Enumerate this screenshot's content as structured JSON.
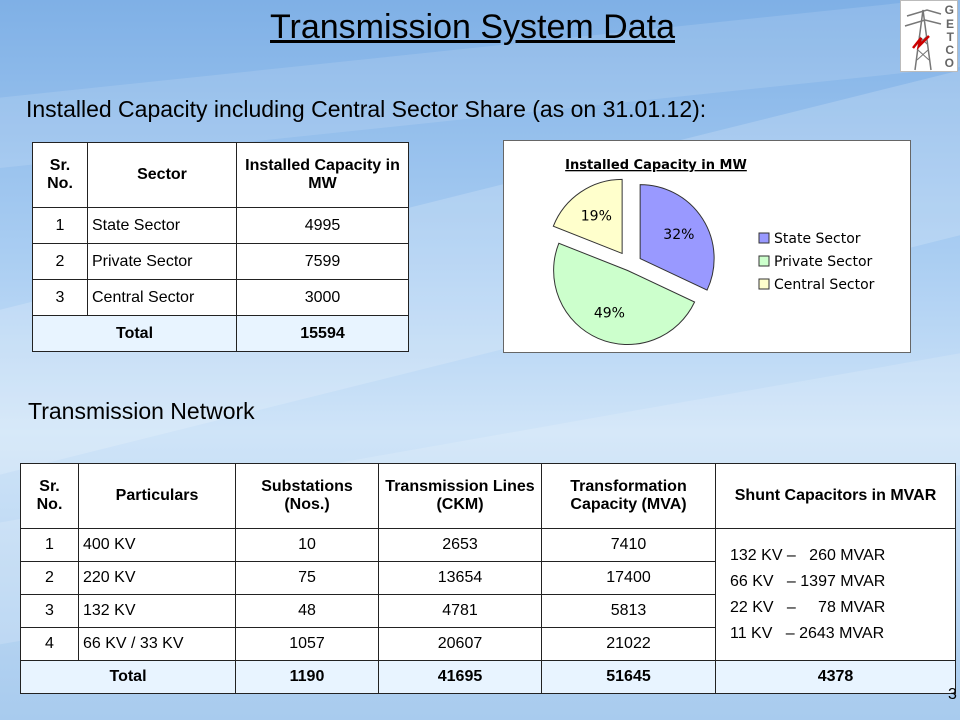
{
  "title": "Transmission System Data",
  "subtitle": "Installed Capacity including Central Sector Share (as on 31.01.12):",
  "logo": {
    "letters": [
      "G",
      "E",
      "T",
      "C",
      "O"
    ],
    "icon": "tower-logo-icon"
  },
  "capacity_table": {
    "headers": [
      "Sr. No.",
      "Sector",
      "Installed Capacity in MW"
    ],
    "rows": [
      {
        "sr": "1",
        "sector": "State Sector",
        "capacity": "4995"
      },
      {
        "sr": "2",
        "sector": "Private Sector",
        "capacity": "7599"
      },
      {
        "sr": "3",
        "sector": "Central Sector",
        "capacity": "3000"
      }
    ],
    "total_label": "Total",
    "total_value": "15594"
  },
  "chart_data": {
    "type": "pie",
    "title": "Installed Capacity in MW",
    "categories": [
      "State Sector",
      "Private Sector",
      "Central Sector"
    ],
    "values": [
      32,
      49,
      19
    ],
    "labels": [
      "32%",
      "49%",
      "19%"
    ],
    "colors": [
      "#9999ff",
      "#ccffcc",
      "#ffffcc"
    ],
    "legend": "right",
    "exploded": true
  },
  "network_title": "Transmission Network",
  "network_table": {
    "headers": [
      "Sr. No.",
      "Particulars",
      "Substations (Nos.)",
      "Transmission Lines (CKM)",
      "Transformation Capacity (MVA)",
      "Shunt Capacitors in MVAR"
    ],
    "rows": [
      {
        "sr": "1",
        "particular": "400 KV",
        "substations": "10",
        "lines": "2653",
        "capacity": "7410"
      },
      {
        "sr": "2",
        "particular": "220 KV",
        "substations": "75",
        "lines": "13654",
        "capacity": "17400"
      },
      {
        "sr": "3",
        "particular": "132 KV",
        "substations": "48",
        "lines": "4781",
        "capacity": "5813"
      },
      {
        "sr": "4",
        "particular": "66 KV / 33 KV",
        "substations": "1057",
        "lines": "20607",
        "capacity": "21022"
      }
    ],
    "shunt": [
      "132 KV –   260 MVAR",
      "66 KV   – 1397 MVAR",
      "22 KV   –     78 MVAR",
      "11 KV   – 2643 MVAR"
    ],
    "total": {
      "label": "Total",
      "substations": "1190",
      "lines": "41695",
      "capacity": "51645",
      "shunt": "4378"
    }
  },
  "page_number": "3"
}
